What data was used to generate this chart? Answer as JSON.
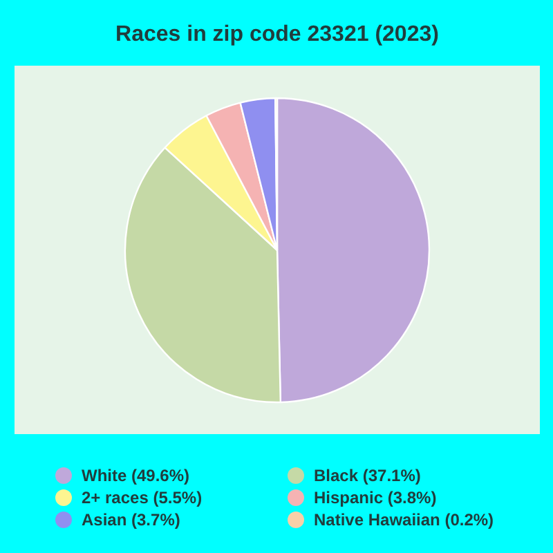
{
  "chart_data": {
    "type": "pie",
    "title": "Races in zip code 23321 (2023)",
    "categories": [
      "White (49.6%)",
      "Black (37.1%)",
      "2+ races (5.5%)",
      "Hispanic (3.8%)",
      "Asian (3.7%)",
      "Native Hawaiian (0.2%)"
    ],
    "values": [
      49.6,
      37.1,
      5.5,
      3.8,
      3.7,
      0.2
    ],
    "colors": [
      "#bfa8da",
      "#c5d9a6",
      "#fdf590",
      "#f5b3b3",
      "#8f8ff0",
      "#f8d0a8"
    ],
    "legend": "bottom"
  }
}
